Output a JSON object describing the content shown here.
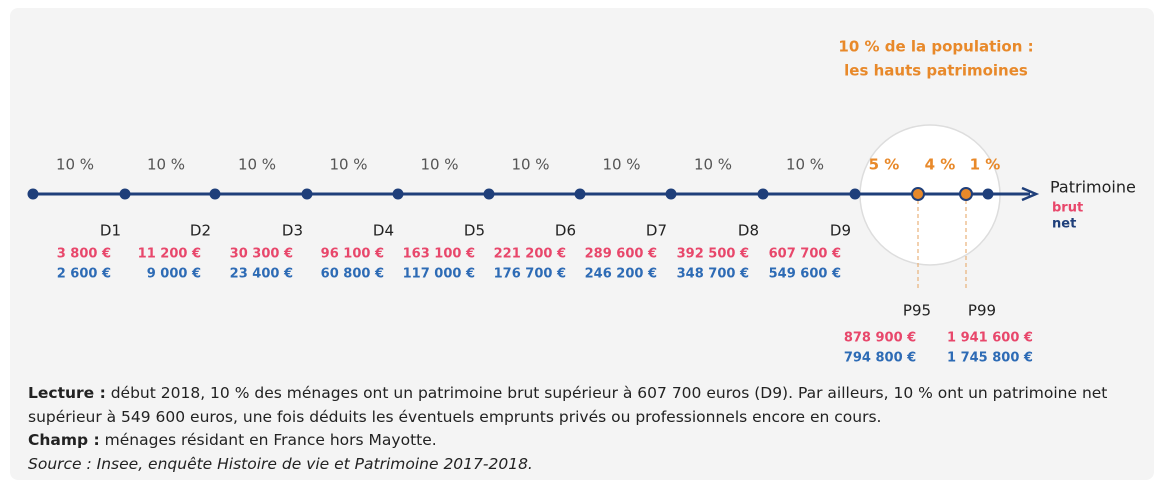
{
  "callout": [
    "10 % de la population :",
    "les hauts patrimoines"
  ],
  "shares": [
    "10 %",
    "10 %",
    "10 %",
    "10 %",
    "10 %",
    "10 %",
    "10 %",
    "10 %",
    "10 %"
  ],
  "high_shares": [
    "5 %",
    "4 %",
    "1 %"
  ],
  "deciles": [
    {
      "label": "D1",
      "brut": "3 800 €",
      "net": "2 600 €"
    },
    {
      "label": "D2",
      "brut": "11 200 €",
      "net": "9 000 €"
    },
    {
      "label": "D3",
      "brut": "30 300 €",
      "net": "23 400 €"
    },
    {
      "label": "D4",
      "brut": "96 100 €",
      "net": "60 800 €"
    },
    {
      "label": "D5",
      "brut": "163 100 €",
      "net": "117 000 €"
    },
    {
      "label": "D6",
      "brut": "221 200 €",
      "net": "176 700 €"
    },
    {
      "label": "D7",
      "brut": "289 600 €",
      "net": "246 200 €"
    },
    {
      "label": "D8",
      "brut": "392 500 €",
      "net": "348 700 €"
    },
    {
      "label": "D9",
      "brut": "607 700 €",
      "net": "549 600 €"
    }
  ],
  "percentiles": [
    {
      "label": "P95",
      "brut": "878 900 €",
      "net": "794 800 €"
    },
    {
      "label": "P99",
      "brut": "1 941 600 €",
      "net": "1 745 800 €"
    }
  ],
  "axis_label": "Patrimoine",
  "legend": [
    "brut",
    "net"
  ],
  "notes": {
    "lecture_label": "Lecture :",
    "lecture": "début 2018, 10 % des ménages ont un patrimoine brut supérieur à 607 700 euros (D9). Par ailleurs, 10 % ont un patrimoine net supérieur à 549 600 euros, une fois déduits les éventuels emprunts privés ou professionnels encore en cours.",
    "champ_label": "Champ :",
    "champ": "ménages résidant en France hors Mayotte.",
    "source": "Source : Insee, enquête Histoire de vie et Patrimoine 2017-2018."
  }
}
